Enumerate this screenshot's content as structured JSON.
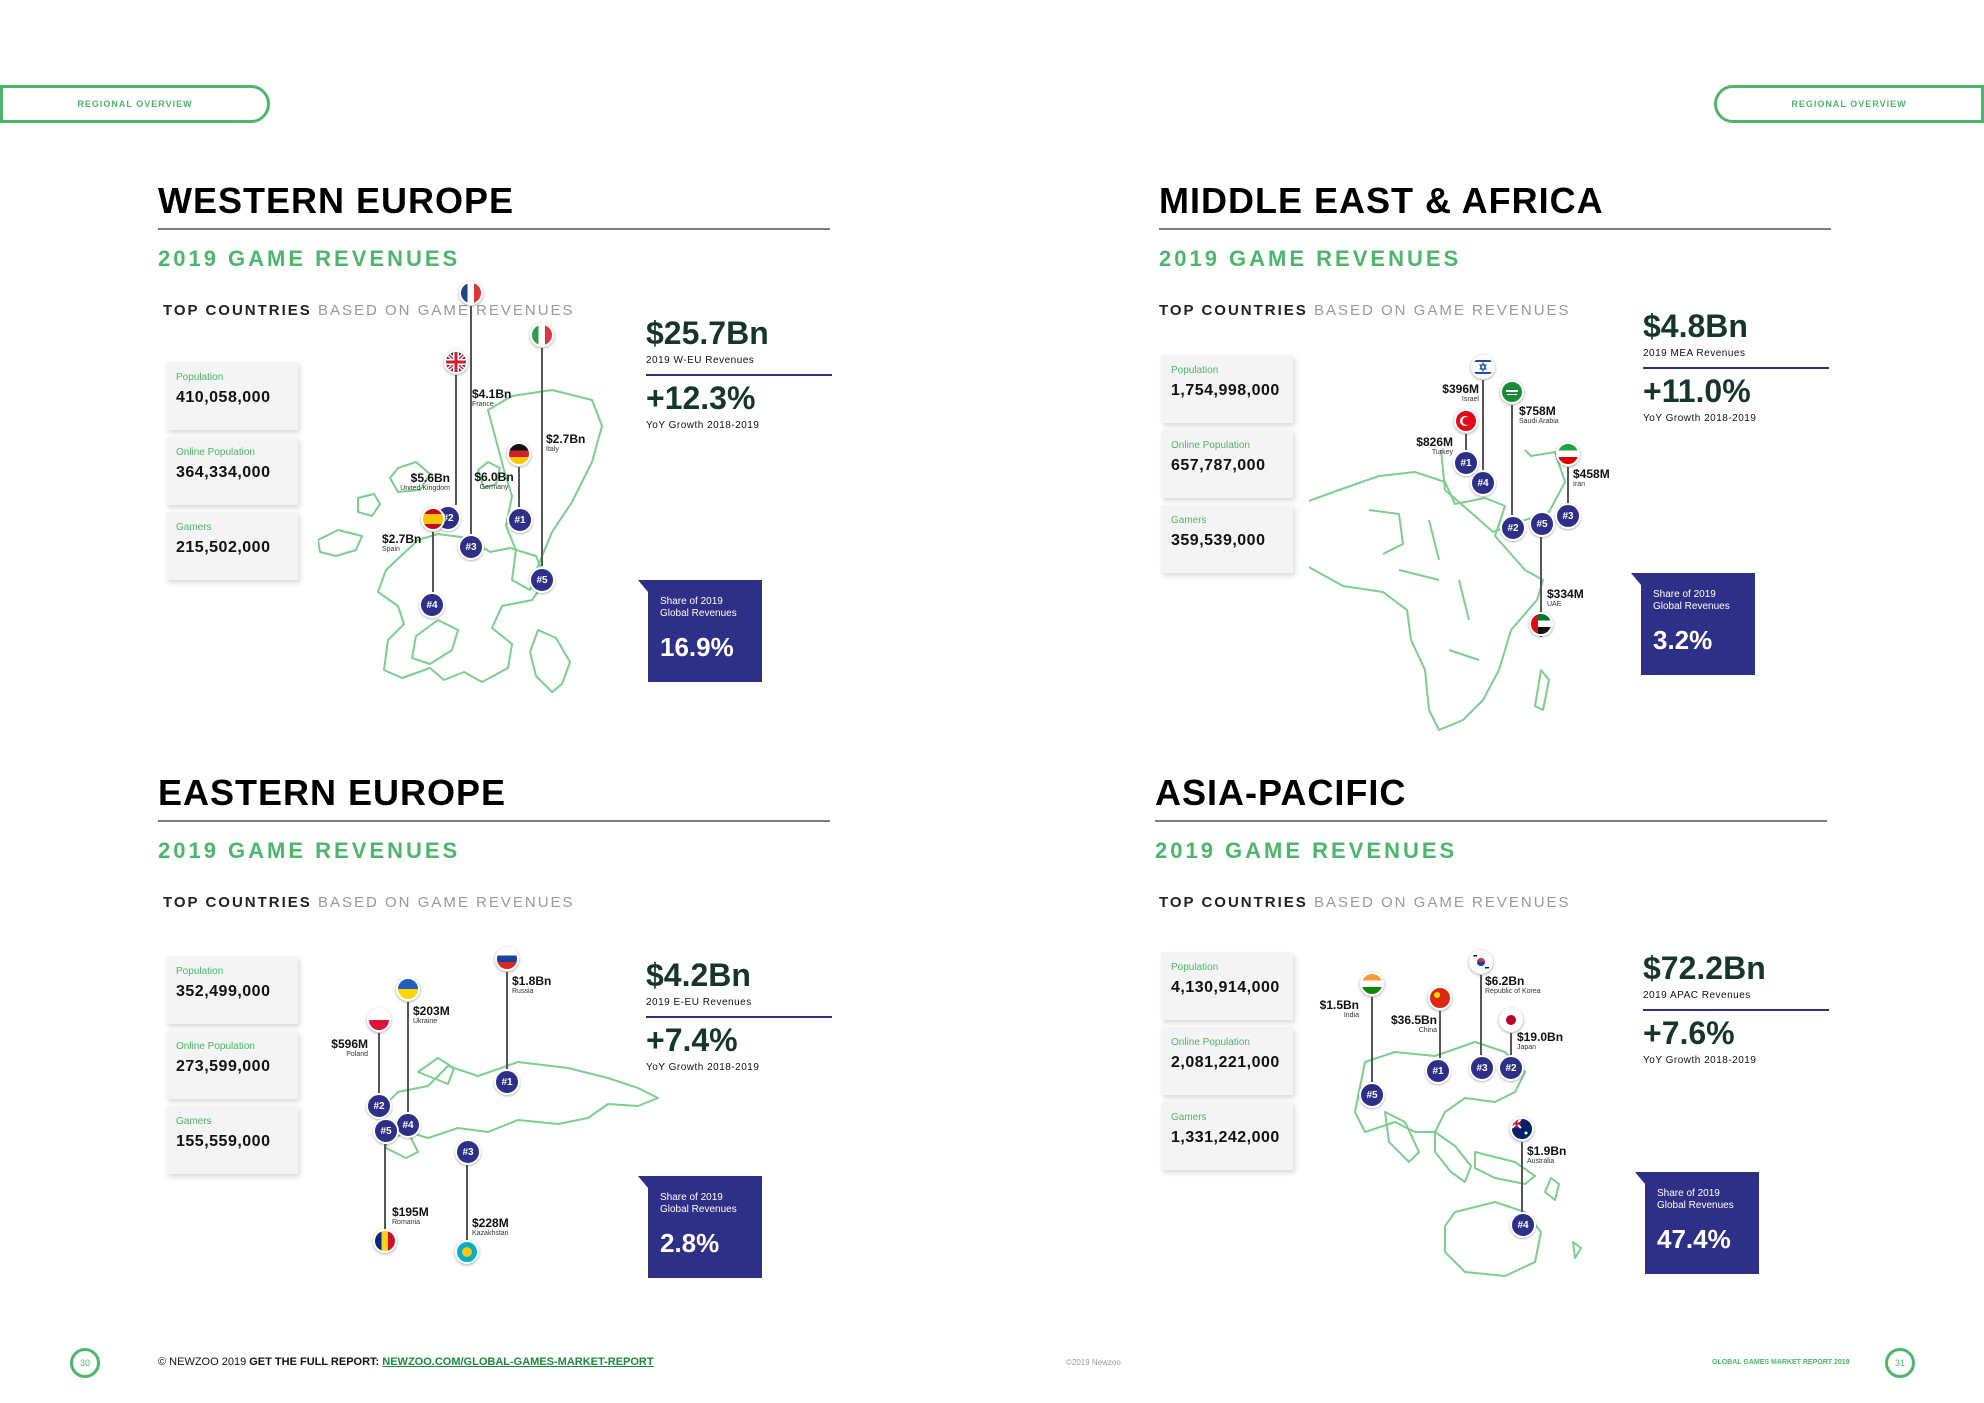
{
  "header": {
    "tab_left": "REGIONAL OVERVIEW",
    "tab_right": "REGIONAL OVERVIEW"
  },
  "colors": {
    "accent_green": "#4cb76a",
    "accent_navy": "#2e2f87"
  },
  "regions": {
    "weu": {
      "title": "WESTERN EUROPE",
      "subtitle": "2019 GAME REVENUES",
      "top_bold": "TOP COUNTRIES",
      "top_rest": "BASED ON GAME REVENUES",
      "stats": [
        {
          "label": "Population",
          "value": "410,058,000"
        },
        {
          "label": "Online Population",
          "value": "364,334,000"
        },
        {
          "label": "Gamers",
          "value": "215,502,000"
        }
      ],
      "revenue": "$25.7Bn",
      "revenue_caption": "2019 W-EU Revenues",
      "growth": "+12.3%",
      "growth_caption": "YoY Growth 2018-2019",
      "share_label": "Share of 2019 Global Revenues",
      "share_value": "16.9%",
      "countries": [
        {
          "amount": "$4.1Bn",
          "name": "France",
          "rank": "#3",
          "flag": "france-flag"
        },
        {
          "amount": "$2.7Bn",
          "name": "Italy",
          "rank": "#5",
          "flag": "italy-flag"
        },
        {
          "amount": "$5.6Bn",
          "name": "United Kingdom",
          "rank": "#2",
          "flag": "uk-flag"
        },
        {
          "amount": "$6.0Bn",
          "name": "Germany",
          "rank": "#1",
          "flag": "germany-flag"
        },
        {
          "amount": "$2.7Bn",
          "name": "Spain",
          "rank": "#4",
          "flag": "spain-flag"
        }
      ]
    },
    "mea": {
      "title": "MIDDLE EAST & AFRICA",
      "subtitle": "2019 GAME REVENUES",
      "top_bold": "TOP COUNTRIES",
      "top_rest": "BASED ON GAME REVENUES",
      "stats": [
        {
          "label": "Population",
          "value": "1,754,998,000"
        },
        {
          "label": "Online Population",
          "value": "657,787,000"
        },
        {
          "label": "Gamers",
          "value": "359,539,000"
        }
      ],
      "revenue": "$4.8Bn",
      "revenue_caption": "2019 MEA Revenues",
      "growth": "+11.0%",
      "growth_caption": "YoY Growth 2018-2019",
      "share_label": "Share of 2019 Global Revenues",
      "share_value": "3.2%",
      "countries": [
        {
          "amount": "$396M",
          "name": "Israel",
          "rank": "#4",
          "flag": "israel-flag"
        },
        {
          "amount": "$758M",
          "name": "Saudi Arabia",
          "rank": "#2",
          "flag": "saudi-arabia-flag"
        },
        {
          "amount": "$826M",
          "name": "Turkey",
          "rank": "#1",
          "flag": "turkey-flag"
        },
        {
          "amount": "$458M",
          "name": "Iran",
          "rank": "#3",
          "flag": "iran-flag"
        },
        {
          "amount": "$334M",
          "name": "UAE",
          "rank": "#5",
          "flag": "uae-flag"
        }
      ]
    },
    "eeu": {
      "title": "EASTERN EUROPE",
      "subtitle": "2019 GAME REVENUES",
      "top_bold": "TOP COUNTRIES",
      "top_rest": "BASED ON GAME REVENUES",
      "stats": [
        {
          "label": "Population",
          "value": "352,499,000"
        },
        {
          "label": "Online Population",
          "value": "273,599,000"
        },
        {
          "label": "Gamers",
          "value": "155,559,000"
        }
      ],
      "revenue": "$4.2Bn",
      "revenue_caption": "2019 E-EU Revenues",
      "growth": "+7.4%",
      "growth_caption": "YoY Growth 2018-2019",
      "share_label": "Share of 2019 Global Revenues",
      "share_value": "2.8%",
      "countries": [
        {
          "amount": "$1.8Bn",
          "name": "Russia",
          "rank": "#1",
          "flag": "russia-flag"
        },
        {
          "amount": "$203M",
          "name": "Ukraine",
          "rank": "#4",
          "flag": "ukraine-flag"
        },
        {
          "amount": "$596M",
          "name": "Poland",
          "rank": "#2",
          "flag": "poland-flag"
        },
        {
          "amount": "$195M",
          "name": "Romania",
          "rank": "#5",
          "flag": "romania-flag"
        },
        {
          "amount": "$228M",
          "name": "Kazakhstan",
          "rank": "#3",
          "flag": "kazakhstan-flag"
        }
      ]
    },
    "apac": {
      "title": "ASIA-PACIFIC",
      "subtitle": "2019 GAME REVENUES",
      "top_bold": "TOP COUNTRIES",
      "top_rest": "BASED ON GAME REVENUES",
      "stats": [
        {
          "label": "Population",
          "value": "4,130,914,000"
        },
        {
          "label": "Online Population",
          "value": "2,081,221,000"
        },
        {
          "label": "Gamers",
          "value": "1,331,242,000"
        }
      ],
      "revenue": "$72.2Bn",
      "revenue_caption": "2019 APAC Revenues",
      "growth": "+7.6%",
      "growth_caption": "YoY Growth 2018-2019",
      "share_label": "Share of 2019 Global Revenues",
      "share_value": "47.4%",
      "countries": [
        {
          "amount": "$6.2Bn",
          "name": "Republic of Korea",
          "rank": "#3",
          "flag": "korea-flag"
        },
        {
          "amount": "$1.5Bn",
          "name": "India",
          "rank": "#5",
          "flag": "india-flag"
        },
        {
          "amount": "$36.5Bn",
          "name": "China",
          "rank": "#1",
          "flag": "china-flag"
        },
        {
          "amount": "$19.0Bn",
          "name": "Japan",
          "rank": "#2",
          "flag": "japan-flag"
        },
        {
          "amount": "$1.9Bn",
          "name": "Australia",
          "rank": "#4",
          "flag": "australia-flag"
        }
      ]
    }
  },
  "footer": {
    "page_left": "30",
    "page_right": "31",
    "copyright": "© NEWZOO 2019",
    "cta": "GET THE FULL REPORT:",
    "link": "NEWZOO.COM/GLOBAL-GAMES-MARKET-REPORT",
    "center": "©2019 Newzoo",
    "right": "GLOBAL GAMES MARKET REPORT 2019"
  }
}
